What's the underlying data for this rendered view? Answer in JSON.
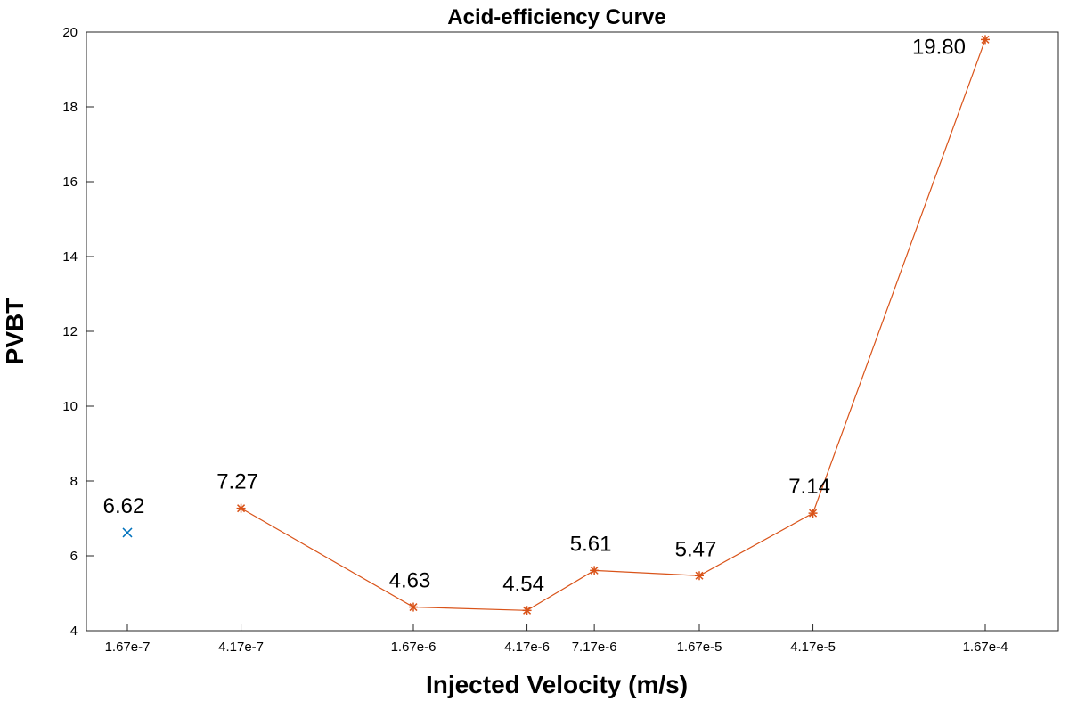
{
  "chart_data": {
    "type": "line",
    "title": "Acid-efficiency Curve",
    "xlabel": "Injected Velocity (m/s)",
    "ylabel": "PVBT",
    "ylim": [
      4,
      20
    ],
    "yticks": [
      "4",
      "6",
      "8",
      "10",
      "12",
      "14",
      "16",
      "18",
      "20"
    ],
    "x": [
      "1.67e-7",
      "4.17e-7",
      "1.67e-6",
      "4.17e-6",
      "7.17e-6",
      "1.67e-5",
      "4.17e-5",
      "1.67e-4"
    ],
    "x_scale": "log",
    "grid": false,
    "series": [
      {
        "marker": "x",
        "color": "#0072BD",
        "line": false,
        "points": [
          {
            "x": "1.67e-7",
            "y": 6.62,
            "label": "6.62"
          }
        ]
      },
      {
        "marker": "*",
        "color": "#D95319",
        "line": true,
        "points": [
          {
            "x": "4.17e-7",
            "y": 7.27,
            "label": "7.27"
          },
          {
            "x": "1.67e-6",
            "y": 4.63,
            "label": "4.63"
          },
          {
            "x": "4.17e-6",
            "y": 4.54,
            "label": "4.54"
          },
          {
            "x": "7.17e-6",
            "y": 5.61,
            "label": "5.61"
          },
          {
            "x": "1.67e-5",
            "y": 5.47,
            "label": "5.47"
          },
          {
            "x": "4.17e-5",
            "y": 7.14,
            "label": "7.14"
          },
          {
            "x": "1.67e-4",
            "y": 19.8,
            "label": "19.80"
          }
        ]
      }
    ]
  }
}
